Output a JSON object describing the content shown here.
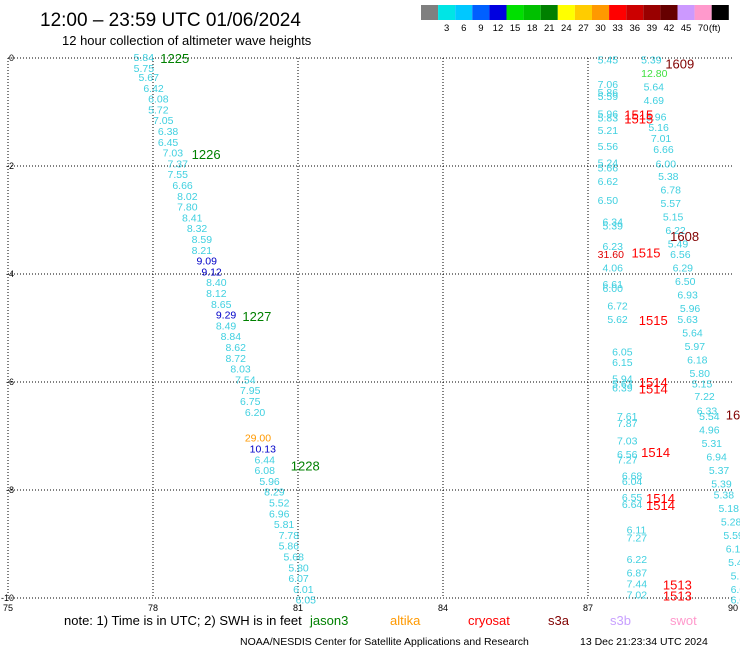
{
  "header": {
    "title": "12:00 – 23:59 UTC 01/06/2024",
    "subtitle": "12 hour collection of altimeter wave heights"
  },
  "legend": {
    "unit": "(ft)",
    "bins": [
      {
        "label": "",
        "color": "#7f7f7f"
      },
      {
        "label": "3",
        "color": "#00e5e5"
      },
      {
        "label": "6",
        "color": "#00c8ff"
      },
      {
        "label": "9",
        "color": "#0060ff"
      },
      {
        "label": "12",
        "color": "#0000e0"
      },
      {
        "label": "15",
        "color": "#00e000"
      },
      {
        "label": "18",
        "color": "#00c000"
      },
      {
        "label": "21",
        "color": "#008000"
      },
      {
        "label": "24",
        "color": "#ffff00"
      },
      {
        "label": "27",
        "color": "#ffcc00"
      },
      {
        "label": "30",
        "color": "#ff9900"
      },
      {
        "label": "33",
        "color": "#ff0000"
      },
      {
        "label": "36",
        "color": "#cc0000"
      },
      {
        "label": "39",
        "color": "#990000"
      },
      {
        "label": "42",
        "color": "#660000"
      },
      {
        "label": "45",
        "color": "#cc99ff"
      },
      {
        "label": "70",
        "color": "#ff99cc"
      },
      {
        "label": "",
        "color": "#000000"
      }
    ]
  },
  "chart_data": {
    "type": "scatter",
    "xlim": [
      75,
      90
    ],
    "ylim": [
      -10,
      0
    ],
    "x_ticks": [
      75,
      78,
      81,
      84,
      87,
      90
    ],
    "y_ticks": [
      0,
      -2,
      -4,
      -6,
      -8,
      -10
    ],
    "grid": true,
    "points": [
      {
        "x": 77.6,
        "y": 0.0,
        "t": "5.84",
        "c": "#40d0e0"
      },
      {
        "x": 77.6,
        "y": -0.2,
        "t": "5.75",
        "c": "#40d0e0"
      },
      {
        "x": 77.7,
        "y": -0.37,
        "t": "5.67",
        "c": "#40d0e0"
      },
      {
        "x": 77.8,
        "y": -0.57,
        "t": "6.42",
        "c": "#40d0e0"
      },
      {
        "x": 77.9,
        "y": -0.77,
        "t": "6.08",
        "c": "#40d0e0"
      },
      {
        "x": 77.9,
        "y": -0.97,
        "t": "5.72",
        "c": "#40d0e0"
      },
      {
        "x": 78.0,
        "y": -1.17,
        "t": "7.05",
        "c": "#40d0e0"
      },
      {
        "x": 78.1,
        "y": -1.37,
        "t": "6.38",
        "c": "#40d0e0"
      },
      {
        "x": 78.1,
        "y": -1.57,
        "t": "6.45",
        "c": "#40d0e0"
      },
      {
        "x": 78.2,
        "y": -1.77,
        "t": "7.03",
        "c": "#40d0e0"
      },
      {
        "x": 78.3,
        "y": -1.97,
        "t": "7.37",
        "c": "#40d0e0"
      },
      {
        "x": 78.3,
        "y": -2.17,
        "t": "7.55",
        "c": "#40d0e0"
      },
      {
        "x": 78.4,
        "y": -2.37,
        "t": "6.66",
        "c": "#40d0e0"
      },
      {
        "x": 78.5,
        "y": -2.57,
        "t": "8.02",
        "c": "#40d0e0"
      },
      {
        "x": 78.5,
        "y": -2.77,
        "t": "7.80",
        "c": "#40d0e0"
      },
      {
        "x": 78.6,
        "y": -2.97,
        "t": "8.41",
        "c": "#40d0e0"
      },
      {
        "x": 78.7,
        "y": -3.17,
        "t": "8.32",
        "c": "#40d0e0"
      },
      {
        "x": 78.8,
        "y": -3.37,
        "t": "8.59",
        "c": "#40d0e0"
      },
      {
        "x": 78.8,
        "y": -3.57,
        "t": "8.21",
        "c": "#40d0e0"
      },
      {
        "x": 78.9,
        "y": -3.77,
        "t": "9.09",
        "c": "#0000c8"
      },
      {
        "x": 79.0,
        "y": -3.97,
        "t": "9.12",
        "c": "#0000c8"
      },
      {
        "x": 79.1,
        "y": -4.17,
        "t": "8.40",
        "c": "#40d0e0"
      },
      {
        "x": 79.1,
        "y": -4.37,
        "t": "8.12",
        "c": "#40d0e0"
      },
      {
        "x": 79.2,
        "y": -4.57,
        "t": "8.65",
        "c": "#40d0e0"
      },
      {
        "x": 79.3,
        "y": -4.77,
        "t": "9.29",
        "c": "#0000c8"
      },
      {
        "x": 79.3,
        "y": -4.97,
        "t": "8.49",
        "c": "#40d0e0"
      },
      {
        "x": 79.4,
        "y": -5.17,
        "t": "8.84",
        "c": "#40d0e0"
      },
      {
        "x": 79.5,
        "y": -5.37,
        "t": "8.62",
        "c": "#40d0e0"
      },
      {
        "x": 79.5,
        "y": -5.57,
        "t": "8.72",
        "c": "#40d0e0"
      },
      {
        "x": 79.6,
        "y": -5.77,
        "t": "8.03",
        "c": "#40d0e0"
      },
      {
        "x": 79.7,
        "y": -5.97,
        "t": "7.54",
        "c": "#40d0e0"
      },
      {
        "x": 79.8,
        "y": -6.17,
        "t": "7.95",
        "c": "#40d0e0"
      },
      {
        "x": 79.8,
        "y": -6.37,
        "t": "6.75",
        "c": "#40d0e0"
      },
      {
        "x": 79.9,
        "y": -6.57,
        "t": "6.20",
        "c": "#40d0e0"
      },
      {
        "x": 79.9,
        "y": -7.05,
        "t": "29.00",
        "c": "#ff9900"
      },
      {
        "x": 80.0,
        "y": -7.25,
        "t": "10.13",
        "c": "#0000c8"
      },
      {
        "x": 80.1,
        "y": -7.45,
        "t": "6.44",
        "c": "#40d0e0"
      },
      {
        "x": 80.1,
        "y": -7.65,
        "t": "6.08",
        "c": "#40d0e0"
      },
      {
        "x": 80.2,
        "y": -7.85,
        "t": "5.96",
        "c": "#40d0e0"
      },
      {
        "x": 80.3,
        "y": -8.05,
        "t": "8.29",
        "c": "#40d0e0"
      },
      {
        "x": 80.4,
        "y": -8.25,
        "t": "5.52",
        "c": "#40d0e0"
      },
      {
        "x": 80.4,
        "y": -8.45,
        "t": "6.96",
        "c": "#40d0e0"
      },
      {
        "x": 80.5,
        "y": -8.65,
        "t": "5.81",
        "c": "#40d0e0"
      },
      {
        "x": 80.6,
        "y": -8.85,
        "t": "7.78",
        "c": "#40d0e0"
      },
      {
        "x": 80.6,
        "y": -9.05,
        "t": "5.86",
        "c": "#40d0e0"
      },
      {
        "x": 80.7,
        "y": -9.25,
        "t": "5.68",
        "c": "#40d0e0"
      },
      {
        "x": 80.8,
        "y": -9.45,
        "t": "5.80",
        "c": "#40d0e0"
      },
      {
        "x": 80.8,
        "y": -9.65,
        "t": "6.07",
        "c": "#40d0e0"
      },
      {
        "x": 80.9,
        "y": -9.85,
        "t": "6.01",
        "c": "#40d0e0"
      },
      {
        "x": 80.95,
        "y": -10.05,
        "t": "6.05",
        "c": "#40d0e0"
      },
      {
        "x": 87.2,
        "y": -0.05,
        "t": "5.45",
        "c": "#40d0e0"
      },
      {
        "x": 87.2,
        "y": -0.5,
        "t": "7.06",
        "c": "#40d0e0"
      },
      {
        "x": 87.2,
        "y": -0.65,
        "t": "5.86",
        "c": "#40d0e0"
      },
      {
        "x": 87.2,
        "y": -0.72,
        "t": "5.59",
        "c": "#40d0e0"
      },
      {
        "x": 87.2,
        "y": -1.05,
        "t": "5.96",
        "c": "#40d0e0"
      },
      {
        "x": 87.2,
        "y": -1.12,
        "t": "5.83",
        "c": "#40d0e0"
      },
      {
        "x": 87.2,
        "y": -1.35,
        "t": "5.21",
        "c": "#40d0e0"
      },
      {
        "x": 87.2,
        "y": -1.65,
        "t": "5.56",
        "c": "#40d0e0"
      },
      {
        "x": 87.2,
        "y": -1.95,
        "t": "5.24",
        "c": "#40d0e0"
      },
      {
        "x": 87.2,
        "y": -2.05,
        "t": "5.66",
        "c": "#40d0e0"
      },
      {
        "x": 87.2,
        "y": -2.3,
        "t": "6.62",
        "c": "#40d0e0"
      },
      {
        "x": 87.2,
        "y": -2.65,
        "t": "6.50",
        "c": "#40d0e0"
      },
      {
        "x": 87.3,
        "y": -3.05,
        "t": "6.34",
        "c": "#40d0e0"
      },
      {
        "x": 87.3,
        "y": -3.12,
        "t": "5.39",
        "c": "#40d0e0"
      },
      {
        "x": 87.3,
        "y": -3.5,
        "t": "6.23",
        "c": "#40d0e0"
      },
      {
        "x": 87.2,
        "y": -3.65,
        "t": "31.60",
        "c": "#e00000"
      },
      {
        "x": 87.3,
        "y": -3.9,
        "t": "4.06",
        "c": "#40d0e0"
      },
      {
        "x": 87.3,
        "y": -4.2,
        "t": "6.61",
        "c": "#40d0e0"
      },
      {
        "x": 87.3,
        "y": -4.28,
        "t": "6.00",
        "c": "#40d0e0"
      },
      {
        "x": 87.4,
        "y": -4.6,
        "t": "6.72",
        "c": "#40d0e0"
      },
      {
        "x": 87.4,
        "y": -4.85,
        "t": "5.62",
        "c": "#40d0e0"
      },
      {
        "x": 87.5,
        "y": -5.45,
        "t": "6.05",
        "c": "#40d0e0"
      },
      {
        "x": 87.5,
        "y": -5.65,
        "t": "6.15",
        "c": "#40d0e0"
      },
      {
        "x": 87.5,
        "y": -5.95,
        "t": "5.94",
        "c": "#40d0e0"
      },
      {
        "x": 87.5,
        "y": -6.05,
        "t": "5.63",
        "c": "#40d0e0"
      },
      {
        "x": 87.5,
        "y": -6.12,
        "t": "6.39",
        "c": "#40d0e0"
      },
      {
        "x": 87.6,
        "y": -6.65,
        "t": "7.61",
        "c": "#40d0e0"
      },
      {
        "x": 87.6,
        "y": -6.78,
        "t": "7.87",
        "c": "#40d0e0"
      },
      {
        "x": 87.6,
        "y": -7.1,
        "t": "7.03",
        "c": "#40d0e0"
      },
      {
        "x": 87.6,
        "y": -7.35,
        "t": "6.56",
        "c": "#40d0e0"
      },
      {
        "x": 87.6,
        "y": -7.45,
        "t": "7.27",
        "c": "#40d0e0"
      },
      {
        "x": 87.7,
        "y": -7.75,
        "t": "6.68",
        "c": "#40d0e0"
      },
      {
        "x": 87.7,
        "y": -7.85,
        "t": "6.04",
        "c": "#40d0e0"
      },
      {
        "x": 87.7,
        "y": -8.15,
        "t": "6.55",
        "c": "#40d0e0"
      },
      {
        "x": 87.7,
        "y": -8.28,
        "t": "6.64",
        "c": "#40d0e0"
      },
      {
        "x": 87.8,
        "y": -8.75,
        "t": "6.11",
        "c": "#40d0e0"
      },
      {
        "x": 87.8,
        "y": -8.9,
        "t": "7.27",
        "c": "#40d0e0"
      },
      {
        "x": 87.8,
        "y": -9.3,
        "t": "6.22",
        "c": "#40d0e0"
      },
      {
        "x": 87.8,
        "y": -9.55,
        "t": "6.87",
        "c": "#40d0e0"
      },
      {
        "x": 87.8,
        "y": -9.75,
        "t": "7.44",
        "c": "#40d0e0"
      },
      {
        "x": 87.8,
        "y": -9.95,
        "t": "7.02",
        "c": "#40d0e0"
      },
      {
        "x": 88.1,
        "y": -0.05,
        "t": "5.39",
        "c": "#40d0e0"
      },
      {
        "x": 88.1,
        "y": -0.3,
        "t": "12.80",
        "c": "#40e040"
      },
      {
        "x": 88.15,
        "y": -0.55,
        "t": "5.64",
        "c": "#40d0e0"
      },
      {
        "x": 88.15,
        "y": -0.8,
        "t": "4.69",
        "c": "#40d0e0"
      },
      {
        "x": 88.2,
        "y": -1.1,
        "t": "5.96",
        "c": "#40d0e0"
      },
      {
        "x": 88.25,
        "y": -1.3,
        "t": "5.16",
        "c": "#40d0e0"
      },
      {
        "x": 88.3,
        "y": -1.5,
        "t": "7.01",
        "c": "#40d0e0"
      },
      {
        "x": 88.35,
        "y": -1.7,
        "t": "6.66",
        "c": "#40d0e0"
      },
      {
        "x": 88.4,
        "y": -1.97,
        "t": "6.00",
        "c": "#40d0e0"
      },
      {
        "x": 88.45,
        "y": -2.2,
        "t": "5.38",
        "c": "#40d0e0"
      },
      {
        "x": 88.5,
        "y": -2.45,
        "t": "6.78",
        "c": "#40d0e0"
      },
      {
        "x": 88.5,
        "y": -2.7,
        "t": "5.57",
        "c": "#40d0e0"
      },
      {
        "x": 88.55,
        "y": -2.95,
        "t": "5.15",
        "c": "#40d0e0"
      },
      {
        "x": 88.6,
        "y": -3.2,
        "t": "6.22",
        "c": "#40d0e0"
      },
      {
        "x": 88.65,
        "y": -3.45,
        "t": "5.49",
        "c": "#40d0e0"
      },
      {
        "x": 88.7,
        "y": -3.65,
        "t": "6.56",
        "c": "#40d0e0"
      },
      {
        "x": 88.75,
        "y": -3.9,
        "t": "6.29",
        "c": "#40d0e0"
      },
      {
        "x": 88.8,
        "y": -4.15,
        "t": "6.50",
        "c": "#40d0e0"
      },
      {
        "x": 88.85,
        "y": -4.4,
        "t": "6.93",
        "c": "#40d0e0"
      },
      {
        "x": 88.9,
        "y": -4.65,
        "t": "5.96",
        "c": "#40d0e0"
      },
      {
        "x": 88.85,
        "y": -4.85,
        "t": "5.63",
        "c": "#40d0e0"
      },
      {
        "x": 88.95,
        "y": -5.1,
        "t": "5.64",
        "c": "#40d0e0"
      },
      {
        "x": 89.0,
        "y": -5.35,
        "t": "5.97",
        "c": "#40d0e0"
      },
      {
        "x": 89.05,
        "y": -5.6,
        "t": "6.18",
        "c": "#40d0e0"
      },
      {
        "x": 89.1,
        "y": -5.85,
        "t": "5.80",
        "c": "#40d0e0"
      },
      {
        "x": 89.15,
        "y": -6.05,
        "t": "5.15",
        "c": "#40d0e0"
      },
      {
        "x": 89.2,
        "y": -6.28,
        "t": "7.22",
        "c": "#40d0e0"
      },
      {
        "x": 89.25,
        "y": -6.55,
        "t": "6.33",
        "c": "#40d0e0"
      },
      {
        "x": 89.3,
        "y": -6.65,
        "t": "5.54",
        "c": "#40d0e0"
      },
      {
        "x": 89.3,
        "y": -6.9,
        "t": "4.96",
        "c": "#40d0e0"
      },
      {
        "x": 89.35,
        "y": -7.15,
        "t": "5.31",
        "c": "#40d0e0"
      },
      {
        "x": 89.45,
        "y": -7.4,
        "t": "6.94",
        "c": "#40d0e0"
      },
      {
        "x": 89.5,
        "y": -7.65,
        "t": "5.37",
        "c": "#40d0e0"
      },
      {
        "x": 89.55,
        "y": -7.9,
        "t": "5.39",
        "c": "#40d0e0"
      },
      {
        "x": 89.6,
        "y": -8.1,
        "t": "5.38",
        "c": "#40d0e0"
      },
      {
        "x": 89.7,
        "y": -8.35,
        "t": "5.18",
        "c": "#40d0e0"
      },
      {
        "x": 89.75,
        "y": -8.6,
        "t": "5.28",
        "c": "#40d0e0"
      },
      {
        "x": 89.8,
        "y": -8.85,
        "t": "5.59",
        "c": "#40d0e0"
      },
      {
        "x": 89.85,
        "y": -9.1,
        "t": "6.10",
        "c": "#40d0e0"
      },
      {
        "x": 89.9,
        "y": -9.35,
        "t": "5.48",
        "c": "#40d0e0"
      },
      {
        "x": 89.95,
        "y": -9.6,
        "t": "5.11",
        "c": "#40d0e0"
      },
      {
        "x": 89.95,
        "y": -9.85,
        "t": "6.05",
        "c": "#40d0e0"
      },
      {
        "x": 89.95,
        "y": -10.05,
        "t": "6.09",
        "c": "#40d0e0"
      }
    ],
    "time_labels": [
      {
        "x": 78.15,
        "y": 0.0,
        "t": "1225",
        "c": "#008000"
      },
      {
        "x": 78.8,
        "y": -1.78,
        "t": "1226",
        "c": "#008000"
      },
      {
        "x": 79.85,
        "y": -4.78,
        "t": "1227",
        "c": "#008000"
      },
      {
        "x": 80.85,
        "y": -7.55,
        "t": "1228",
        "c": "#008000"
      },
      {
        "x": 88.6,
        "y": -0.1,
        "t": "1609",
        "c": "#800000"
      },
      {
        "x": 88.7,
        "y": -3.3,
        "t": "1608",
        "c": "#800000"
      },
      {
        "x": 89.85,
        "y": -6.6,
        "t": "16",
        "c": "#800000"
      },
      {
        "x": 87.75,
        "y": -1.05,
        "t": "1515",
        "c": "#ff0000"
      },
      {
        "x": 87.75,
        "y": -1.12,
        "t": "1515",
        "c": "#ff0000"
      },
      {
        "x": 87.9,
        "y": -3.6,
        "t": "1515",
        "c": "#ff0000"
      },
      {
        "x": 88.05,
        "y": -4.85,
        "t": "1515",
        "c": "#ff0000"
      },
      {
        "x": 88.05,
        "y": -6.0,
        "t": "1514",
        "c": "#ff0000"
      },
      {
        "x": 88.05,
        "y": -6.12,
        "t": "1514",
        "c": "#ff0000"
      },
      {
        "x": 88.1,
        "y": -7.3,
        "t": "1514",
        "c": "#ff0000"
      },
      {
        "x": 88.2,
        "y": -8.15,
        "t": "1514",
        "c": "#ff0000"
      },
      {
        "x": 88.2,
        "y": -8.28,
        "t": "1514",
        "c": "#ff0000"
      },
      {
        "x": 88.55,
        "y": -9.75,
        "t": "1513",
        "c": "#ff0000"
      },
      {
        "x": 88.55,
        "y": -9.95,
        "t": "1513",
        "c": "#ff0000"
      }
    ]
  },
  "footer": {
    "note": "note:  1) Time is in UTC; 2) SWH is in feet",
    "satellites": [
      {
        "name": "jason3",
        "color": "#008000"
      },
      {
        "name": "altika",
        "color": "#ff9900"
      },
      {
        "name": "cryosat",
        "color": "#ff0000"
      },
      {
        "name": "s3a",
        "color": "#800000"
      },
      {
        "name": "s3b",
        "color": "#c8a0ff"
      },
      {
        "name": "swot",
        "color": "#ff99cc"
      }
    ],
    "credit": "NOAA/NESDIS Center for Satellite Applications and Research",
    "timestamp": "13 Dec 21:23:34 UTC 2024"
  }
}
